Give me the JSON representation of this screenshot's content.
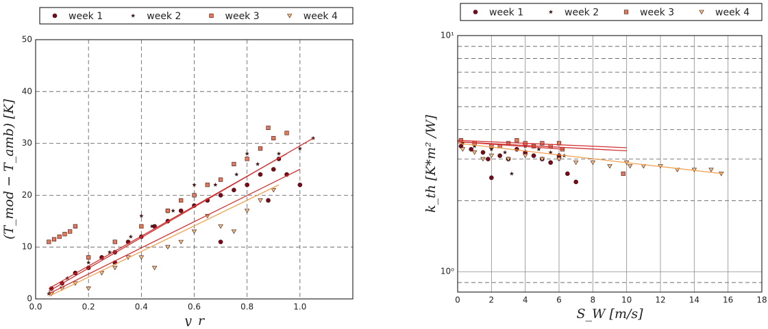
{
  "chart_data": [
    {
      "type": "scatter",
      "xlabel": "y_r",
      "ylabel": "(T_mod − T_amb)  [K]",
      "xlim": [
        0,
        1.2
      ],
      "ylim": [
        0,
        50
      ],
      "xticks": [
        {
          "value": 0,
          "label": "0.0"
        },
        {
          "value": 0.2,
          "label": "0.2"
        },
        {
          "value": 0.4,
          "label": "0.4"
        },
        {
          "value": 0.6,
          "label": "0.6"
        },
        {
          "value": 0.8,
          "label": "0.8"
        },
        {
          "value": 1,
          "label": "1.0"
        }
      ],
      "yticks": [
        0,
        10,
        20,
        30,
        40,
        50
      ],
      "grid": "dashed",
      "legend": "top",
      "series": [
        {
          "name": "week 1",
          "color": "#7a0a1a",
          "marker": "circle",
          "x": [
            0.06,
            0.1,
            0.15,
            0.2,
            0.25,
            0.3,
            0.35,
            0.4,
            0.45,
            0.5,
            0.55,
            0.6,
            0.65,
            0.7,
            0.75,
            0.8,
            0.85,
            0.9,
            0.95,
            1.0,
            0.92,
            0.88,
            0.7,
            0.5,
            0.3
          ],
          "values": [
            2,
            3,
            5,
            6,
            8,
            9,
            11,
            12,
            14,
            15,
            17,
            18,
            19,
            20,
            21,
            22,
            24,
            25,
            24,
            22,
            27,
            19,
            11,
            17,
            7
          ],
          "fit": {
            "x": [
              0.05,
              1.0
            ],
            "values": [
              1,
              25
            ]
          }
        },
        {
          "name": "week 2",
          "color": "#3a1414",
          "marker": "star",
          "x": [
            0.05,
            0.12,
            0.2,
            0.28,
            0.36,
            0.44,
            0.52,
            0.6,
            0.68,
            0.76,
            0.84,
            0.92,
            1.0,
            1.05,
            0.8,
            0.6,
            0.4
          ],
          "values": [
            1,
            4,
            7,
            9,
            12,
            14,
            17,
            20,
            22,
            24,
            26,
            28,
            29,
            31,
            28,
            22,
            16
          ],
          "fit": {
            "x": [
              0.05,
              1.05
            ],
            "values": [
              1.5,
              31
            ]
          }
        },
        {
          "name": "week 3",
          "color": "#e07a5a",
          "marker": "square",
          "x": [
            0.05,
            0.07,
            0.09,
            0.11,
            0.13,
            0.15,
            0.2,
            0.3,
            0.4,
            0.5,
            0.6,
            0.7,
            0.8,
            0.85,
            0.9,
            0.95,
            0.88,
            0.75,
            0.65,
            0.55
          ],
          "values": [
            11,
            11.5,
            12,
            12.5,
            13,
            14,
            8,
            11,
            14,
            17,
            20,
            23,
            27,
            29,
            31,
            32,
            33,
            26,
            22,
            19
          ],
          "fit": {
            "x": [
              0.05,
              0.95
            ],
            "values": [
              2,
              28
            ]
          }
        },
        {
          "name": "week 4",
          "color": "#f0c080",
          "marker": "triangle",
          "x": [
            0.06,
            0.1,
            0.15,
            0.2,
            0.3,
            0.4,
            0.5,
            0.6,
            0.65,
            0.7,
            0.75,
            0.8,
            0.85,
            0.9,
            0.55,
            0.45,
            0.35,
            0.25
          ],
          "values": [
            1,
            2,
            3,
            2,
            6,
            8,
            10,
            13,
            16,
            14,
            13,
            17,
            19,
            21,
            11,
            6,
            8,
            5
          ],
          "fit": {
            "x": [
              0.05,
              0.92
            ],
            "values": [
              0.5,
              22
            ]
          }
        }
      ]
    },
    {
      "type": "scatter",
      "xlabel": "S_W  [m/s]",
      "ylabel": "k_th  [K*m² /W]",
      "xlim": [
        0,
        18
      ],
      "ylim": [
        0.82,
        10
      ],
      "log_y": true,
      "xticks": [
        0,
        2,
        4,
        6,
        8,
        10,
        12,
        14,
        16,
        18
      ],
      "yticks": [
        {
          "value": 1,
          "label": "10⁰"
        },
        {
          "value": 10,
          "label": "10¹"
        }
      ],
      "minor_yticks": [
        0.9,
        2,
        3,
        4,
        5,
        6,
        7,
        8,
        9
      ],
      "grid": "solid",
      "legend": "top",
      "series": [
        {
          "name": "week 1",
          "color": "#7a0a1a",
          "marker": "circle",
          "x": [
            0.2,
            0.8,
            1.5,
            2,
            2.5,
            3,
            3.5,
            4,
            4.5,
            5,
            5.5,
            6,
            6.5,
            7,
            1.8
          ],
          "values": [
            3.4,
            3.3,
            3.2,
            2.5,
            3.1,
            3.0,
            3.3,
            3.2,
            3.1,
            3.0,
            2.9,
            3.1,
            2.6,
            2.4,
            3.0
          ],
          "fit": {
            "x": [
              0,
              10
            ],
            "values": [
              3.55,
              3.25
            ]
          }
        },
        {
          "name": "week 2",
          "color": "#3a1414",
          "marker": "star",
          "x": [
            0.3,
            1,
            2,
            2.8,
            3.2,
            4,
            4.8,
            5.5,
            6,
            6.3
          ],
          "values": [
            3.5,
            3.4,
            3.3,
            3.2,
            2.6,
            3.4,
            3.3,
            3.2,
            3.0,
            3.1
          ],
          "fit": {
            "x": [
              0,
              6.3
            ],
            "values": [
              3.55,
              3.3
            ]
          }
        },
        {
          "name": "week 3",
          "color": "#e07a5a",
          "marker": "square",
          "x": [
            0.2,
            1,
            2,
            3,
            3.5,
            4,
            4.5,
            5,
            5.5,
            6,
            6.2,
            9.8,
            2.5
          ],
          "values": [
            3.6,
            3.5,
            3.4,
            3.5,
            3.6,
            3.5,
            3.4,
            3.5,
            3.4,
            3.5,
            3.3,
            2.6,
            3.4
          ],
          "fit": {
            "x": [
              0,
              10
            ],
            "values": [
              3.6,
              3.35
            ]
          }
        },
        {
          "name": "week 4",
          "color": "#f0c080",
          "marker": "triangle",
          "x": [
            0.3,
            1,
            2,
            3,
            4,
            5,
            6,
            7,
            8,
            9,
            10,
            11,
            12,
            13,
            14,
            15,
            15.6,
            10.2,
            1.5
          ],
          "values": [
            3.3,
            3.2,
            3.1,
            3.0,
            3.1,
            3.0,
            3.0,
            2.9,
            2.9,
            2.8,
            2.9,
            2.8,
            2.8,
            2.7,
            2.7,
            2.7,
            2.6,
            2.8,
            3.0
          ],
          "fit": {
            "x": [
              0,
              15.7
            ],
            "values": [
              3.5,
              2.6
            ]
          }
        }
      ]
    }
  ]
}
